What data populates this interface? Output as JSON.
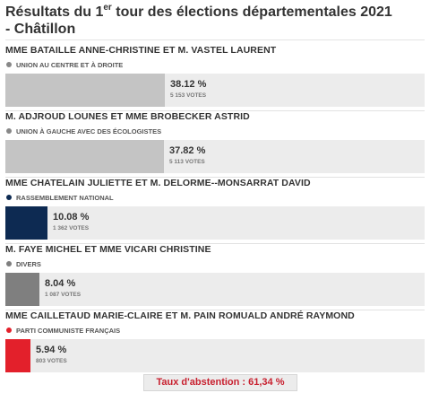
{
  "title": {
    "prefix": "Résultats du 1",
    "sup": "er",
    "suffix": " tour des élections départementales 2021",
    "line2": "- Châtillon"
  },
  "chart_data": {
    "type": "bar",
    "orientation": "horizontal",
    "xlim": [
      0,
      100
    ],
    "candidates": [
      {
        "name": "MME BATAILLE ANNE-CHRISTINE ET M. VASTEL LAURENT",
        "party": "UNION AU CENTRE ET À DROITE",
        "percent": 38.12,
        "percent_label": "38.12 %",
        "votes_label": "5 153 VOTES",
        "color": "#c4c4c4",
        "dot_color": "#888888"
      },
      {
        "name": "M. ADJROUD LOUNES ET MME BROBECKER ASTRID",
        "party": "UNION À GAUCHE AVEC DES ÉCOLOGISTES",
        "percent": 37.82,
        "percent_label": "37.82 %",
        "votes_label": "5 113 VOTES",
        "color": "#c4c4c4",
        "dot_color": "#888888"
      },
      {
        "name": "MME CHATELAIN JULIETTE ET M. DELORME--MONSARRAT DAVID",
        "party": "RASSEMBLEMENT NATIONAL",
        "percent": 10.08,
        "percent_label": "10.08 %",
        "votes_label": "1 362 VOTES",
        "color": "#0d2a52",
        "dot_color": "#0d2a52"
      },
      {
        "name": "M. FAYE MICHEL ET MME VICARI CHRISTINE",
        "party": "DIVERS",
        "percent": 8.04,
        "percent_label": "8.04 %",
        "votes_label": "1 087 VOTES",
        "color": "#7f7f7f",
        "dot_color": "#7f7f7f"
      },
      {
        "name": "MME CAILLETAUD MARIE-CLAIRE ET M. PAIN ROMUALD ANDRÉ RAYMOND",
        "party": "PARTI COMMUNISTE FRANÇAIS",
        "percent": 5.94,
        "percent_label": "5.94 %",
        "votes_label": "803 VOTES",
        "color": "#e3202b",
        "dot_color": "#e3202b"
      }
    ]
  },
  "abstention": {
    "label": "Taux d'abstention : 61,34 %",
    "value": 61.34,
    "color": "#c8202f"
  }
}
